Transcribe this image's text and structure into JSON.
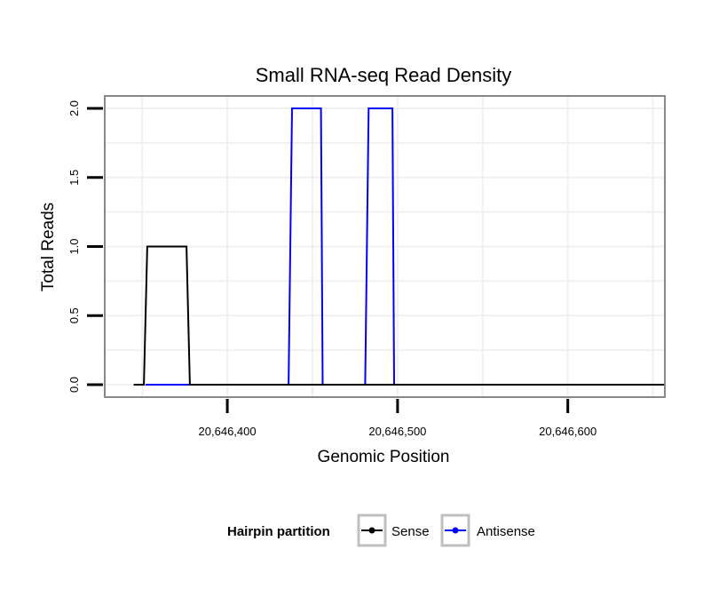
{
  "chart_data": {
    "type": "line",
    "title": "Small RNA-seq Read Density",
    "xlabel": "Genomic Position",
    "ylabel": "Total Reads",
    "xlim": [
      20646328,
      20646657
    ],
    "ylim": [
      -0.09,
      2.09
    ],
    "x_ticks": [
      20646400,
      20646500,
      20646600
    ],
    "x_tick_labels": [
      "20,646,400",
      "20,646,500",
      "20,646,600"
    ],
    "y_ticks": [
      0,
      0.5,
      1,
      1.5,
      2
    ],
    "y_tick_labels": [
      "0.0",
      "0.5",
      "1.0",
      "1.5",
      "2.0"
    ],
    "grid": true,
    "legend": {
      "title": "Hairpin partition",
      "position": "bottom",
      "entries": [
        "Sense",
        "Antisense"
      ]
    },
    "series": [
      {
        "name": "Antisense",
        "color": "#0000ff",
        "x": [
          20646352,
          20646371,
          20646375,
          20646436,
          20646438,
          20646455,
          20646456,
          20646481,
          20646483,
          20646497,
          20646498
        ],
        "y": [
          0,
          0,
          0,
          0,
          2,
          2,
          0,
          0,
          2,
          2,
          0
        ]
      },
      {
        "name": "Sense",
        "color": "#000000",
        "x": [
          20646345,
          20646351,
          20646353,
          20646376,
          20646378,
          20646657
        ],
        "y": [
          0,
          0,
          1,
          1,
          0,
          0
        ]
      }
    ]
  }
}
